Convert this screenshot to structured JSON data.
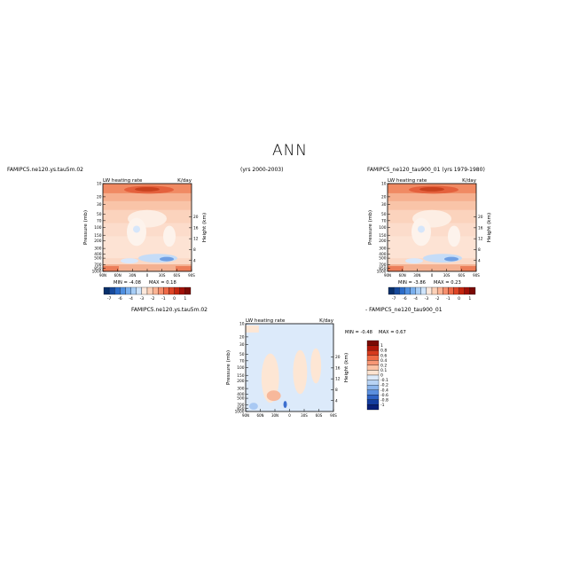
{
  "page": {
    "title": "ANN",
    "case_left": "FAMIPC5.ne120.ys.tau5m.02",
    "years_left": "(yrs 2000-2003)",
    "case_right": "FAMIPC5_ne120_tau900_01 (yrs 1979-1980)",
    "diff_case_a": "FAMIPC5.ne120.ys.tau5m.02",
    "diff_case_b": "- FAMIPC5_ne120_tau900_01"
  },
  "chart_data": [
    {
      "type": "heatmap",
      "panel": "model-a",
      "title": "LW heating rate",
      "units": "K/day",
      "ylabel": "Pressure (mb)",
      "y2label": "Height (km)",
      "x_ticks": [
        "90N",
        "60N",
        "30N",
        "0",
        "30S",
        "60S",
        "90S"
      ],
      "y_ticks": [
        1000,
        850,
        700,
        500,
        400,
        300,
        200,
        150,
        100,
        70,
        50,
        30,
        20,
        10
      ],
      "y2_ticks": [
        20,
        16,
        12,
        8,
        4
      ],
      "min_label": "MIN = -4.08",
      "max_label": "MAX = 0.18",
      "colorbar_labels": [
        "-7",
        "-6",
        "-4",
        "-3",
        "-2",
        "-1",
        "0",
        "1"
      ]
    },
    {
      "type": "heatmap",
      "panel": "model-b",
      "title": "LW heating rate",
      "units": "K/day",
      "ylabel": "Pressure (mb)",
      "y2label": "Height (km)",
      "x_ticks": [
        "90N",
        "60N",
        "30N",
        "0",
        "30S",
        "60S",
        "90S"
      ],
      "y_ticks": [
        1000,
        850,
        700,
        500,
        400,
        300,
        200,
        150,
        100,
        70,
        50,
        30,
        20,
        10
      ],
      "y2_ticks": [
        20,
        16,
        12,
        8,
        4
      ],
      "min_label": "MIN = -3.86",
      "max_label": "MAX = 0.23",
      "colorbar_labels": [
        "-7",
        "-6",
        "-4",
        "-3",
        "-2",
        "-1",
        "0",
        "1"
      ]
    },
    {
      "type": "heatmap",
      "panel": "difference",
      "title": "LW heating rate",
      "units": "K/day",
      "ylabel": "Pressure (mb)",
      "y2label": "Height (km)",
      "x_ticks": [
        "90N",
        "60N",
        "30N",
        "0",
        "30S",
        "60S",
        "90S"
      ],
      "y_ticks": [
        1000,
        850,
        700,
        500,
        400,
        300,
        200,
        150,
        100,
        70,
        50,
        30,
        20,
        10
      ],
      "y2_ticks": [
        20,
        16,
        12,
        8,
        4
      ],
      "min_label": "MIN = -0.48",
      "max_label": "MAX = 0.67",
      "colorbar_labels": [
        "1",
        "0.8",
        "0.6",
        "0.4",
        "0.2",
        "0.1",
        "0",
        "-0.1",
        "-0.2",
        "-0.4",
        "-0.6",
        "-0.8",
        "-1"
      ]
    }
  ]
}
